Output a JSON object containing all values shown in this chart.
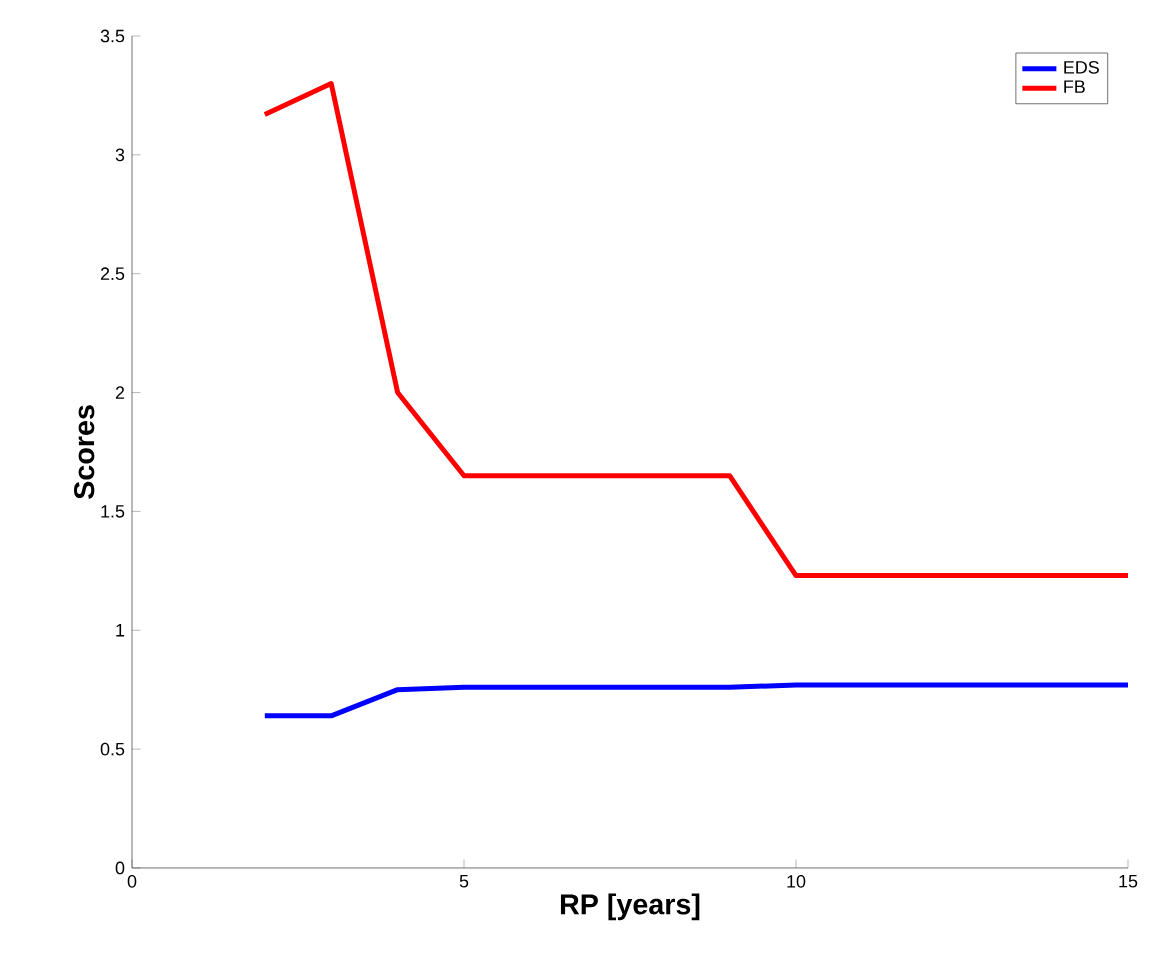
{
  "chart_data": {
    "type": "line",
    "xlabel": "RP [years]",
    "ylabel": "Scores",
    "x": [
      2,
      3,
      4,
      5,
      9,
      10,
      15
    ],
    "series": [
      {
        "name": "EDS",
        "color": "#0000ff",
        "values": [
          0.64,
          0.64,
          0.75,
          0.76,
          0.76,
          0.77,
          0.77
        ]
      },
      {
        "name": "FB",
        "color": "#ff0000",
        "values": [
          3.17,
          3.3,
          2.0,
          1.65,
          1.65,
          1.23,
          1.23
        ]
      }
    ],
    "xlim": [
      0,
      15
    ],
    "ylim": [
      0,
      3.5
    ],
    "xticks": [
      0,
      5,
      10,
      15
    ],
    "yticks": [
      0,
      0.5,
      1,
      1.5,
      2,
      2.5,
      3,
      3.5
    ],
    "grid": false,
    "legend": "top right",
    "marker": "none",
    "line_style": "solid"
  }
}
